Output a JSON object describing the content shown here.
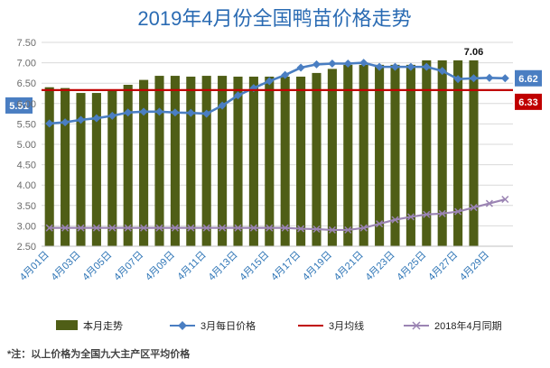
{
  "chart_data": {
    "type": "bar",
    "title": "2019年4月份全国鸭苗价格走势",
    "xlabel": "",
    "ylabel": "",
    "ylim": [
      2.5,
      7.5
    ],
    "yticks": [
      "2.50",
      "3.00",
      "3.50",
      "4.00",
      "4.50",
      "5.00",
      "5.50",
      "6.00",
      "6.50",
      "7.00",
      "7.50"
    ],
    "grid": true,
    "legend_position": "bottom",
    "categories": [
      "4月01日",
      "4月02日",
      "4月03日",
      "4月04日",
      "4月05日",
      "4月06日",
      "4月07日",
      "4月08日",
      "4月09日",
      "4月10日",
      "4月11日",
      "4月12日",
      "4月13日",
      "4月14日",
      "4月15日",
      "4月16日",
      "4月17日",
      "4月18日",
      "4月19日",
      "4月20日",
      "4月21日",
      "4月22日",
      "4月23日",
      "4月24日",
      "4月25日",
      "4月26日",
      "4月27日",
      "4月28日",
      "4月29日",
      "4月30日"
    ],
    "x_tick_labels": [
      "4月01日",
      "4月03日",
      "4月05日",
      "4月07日",
      "4月09日",
      "4月11日",
      "4月13日",
      "4月15日",
      "4月17日",
      "4月19日",
      "4月21日",
      "4月23日",
      "4月25日",
      "4月27日",
      "4月29日"
    ],
    "series": [
      {
        "name": "本月走势",
        "kind": "bar",
        "color": "#4f5e16",
        "values": [
          6.4,
          6.38,
          6.26,
          6.26,
          6.33,
          6.46,
          6.58,
          6.68,
          6.68,
          6.66,
          6.68,
          6.68,
          6.66,
          6.66,
          6.66,
          6.66,
          6.66,
          6.75,
          6.85,
          6.95,
          6.95,
          6.95,
          6.95,
          6.95,
          7.06,
          7.06,
          7.06,
          7.06,
          null,
          null
        ]
      },
      {
        "name": "3月每日价格",
        "kind": "line",
        "color": "#4a7ec2",
        "values": [
          5.51,
          5.54,
          5.6,
          5.64,
          5.7,
          5.78,
          5.8,
          5.8,
          5.78,
          5.77,
          5.75,
          5.95,
          6.2,
          6.38,
          6.55,
          6.7,
          6.88,
          6.96,
          6.98,
          6.98,
          7.0,
          6.9,
          6.9,
          6.9,
          6.9,
          6.8,
          6.6,
          6.62,
          6.63,
          6.62
        ]
      },
      {
        "name": "3月均线",
        "kind": "line",
        "color": "#c00000",
        "values": [
          6.33,
          6.33,
          6.33,
          6.33,
          6.33,
          6.33,
          6.33,
          6.33,
          6.33,
          6.33,
          6.33,
          6.33,
          6.33,
          6.33,
          6.33,
          6.33,
          6.33,
          6.33,
          6.33,
          6.33,
          6.33,
          6.33,
          6.33,
          6.33,
          6.33,
          6.33,
          6.33,
          6.33,
          6.33,
          6.33
        ]
      },
      {
        "name": "2018年4月同期",
        "kind": "line",
        "color": "#9b84b3",
        "values": [
          2.95,
          2.95,
          2.95,
          2.95,
          2.95,
          2.95,
          2.95,
          2.95,
          2.95,
          2.95,
          2.95,
          2.95,
          2.95,
          2.95,
          2.95,
          2.95,
          2.93,
          2.92,
          2.9,
          2.9,
          2.95,
          3.05,
          3.15,
          3.22,
          3.28,
          3.3,
          3.35,
          3.45,
          3.55,
          3.65
        ]
      }
    ],
    "annotations": [
      {
        "text": "7.06",
        "series": "本月走势",
        "index": 27
      },
      {
        "text": "5.51",
        "series": "3月每日价格",
        "index": 0,
        "color": "#4a7ec2"
      },
      {
        "text": "6.62",
        "series": "3月每日价格",
        "index": 29,
        "color": "#4a7ec2"
      },
      {
        "text": "6.33",
        "series": "3月均线",
        "index": 29,
        "color": "#c00000"
      }
    ],
    "footnote": "*注：以上价格为全国九大主产区平均价格"
  }
}
